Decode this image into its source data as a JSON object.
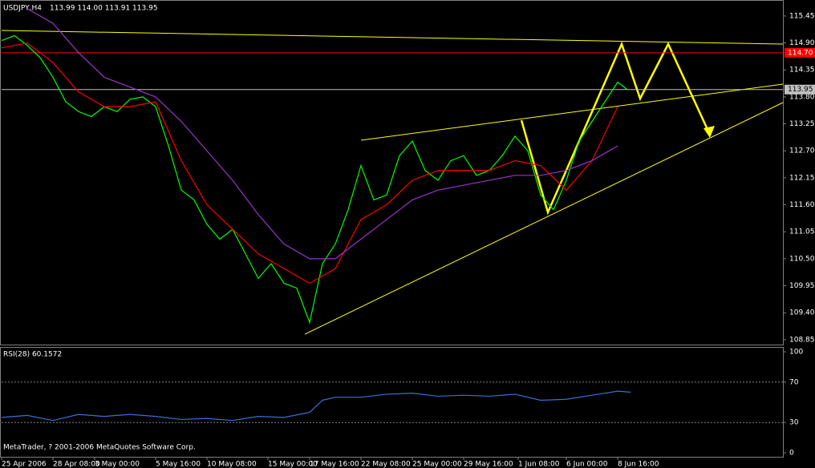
{
  "chart_data": [
    {
      "type": "line",
      "title": "USDJPY,H4",
      "subtitle": "113.99 114.00 113.91 113.95",
      "x": [
        0,
        4,
        8,
        12,
        16,
        20,
        24,
        28,
        32,
        36,
        40,
        44,
        48,
        52,
        56,
        60,
        64,
        68,
        72,
        76,
        80,
        84,
        88,
        92,
        96,
        100,
        104,
        108,
        112,
        116,
        120,
        124,
        128,
        132,
        136,
        140,
        144,
        148,
        152,
        156,
        160,
        164,
        168,
        172,
        176,
        180,
        184,
        188,
        192,
        195
      ],
      "series": [
        {
          "color": "#00ff00",
          "values": [
            114.95,
            115.05,
            114.85,
            114.6,
            114.2,
            113.7,
            113.5,
            113.4,
            113.6,
            113.5,
            113.75,
            113.8,
            113.6,
            112.8,
            111.9,
            111.7,
            111.2,
            110.9,
            111.1,
            110.6,
            110.1,
            110.4,
            110.0,
            109.9,
            109.2,
            110.4,
            110.8,
            111.5,
            112.4,
            111.7,
            111.8,
            112.6,
            112.9,
            112.3,
            112.1,
            112.5,
            112.6,
            112.2,
            112.3,
            112.6,
            113.0,
            112.7,
            111.8,
            111.5,
            112.1,
            112.9,
            113.3,
            113.7,
            114.1,
            113.95
          ]
        },
        {
          "color": "#ff0000",
          "x": [
            0,
            8,
            16,
            24,
            32,
            40,
            48,
            56,
            64,
            72,
            80,
            88,
            96,
            104,
            112,
            120,
            128,
            136,
            144,
            152,
            160,
            168,
            176,
            184,
            192
          ],
          "values": [
            114.8,
            114.9,
            114.5,
            113.9,
            113.6,
            113.6,
            113.7,
            112.5,
            111.6,
            111.1,
            110.6,
            110.3,
            110.0,
            110.3,
            111.3,
            111.6,
            112.1,
            112.3,
            112.3,
            112.3,
            112.5,
            112.4,
            111.9,
            112.5,
            113.6
          ]
        },
        {
          "color": "#9933cc",
          "x": [
            8,
            16,
            24,
            32,
            40,
            48,
            56,
            64,
            72,
            80,
            88,
            96,
            104,
            112,
            120,
            128,
            136,
            144,
            152,
            160,
            168,
            176,
            184,
            192
          ],
          "values": [
            115.6,
            115.3,
            114.7,
            114.2,
            114.0,
            113.8,
            113.3,
            112.7,
            112.1,
            111.4,
            110.8,
            110.5,
            110.5,
            110.9,
            111.3,
            111.7,
            111.9,
            112.0,
            112.1,
            112.2,
            112.2,
            112.3,
            112.5,
            112.8
          ]
        }
      ],
      "hlines": [
        {
          "value": 114.7,
          "label": "114.70",
          "color": "#ff0000"
        },
        {
          "value": 113.95,
          "color": "#c0c0c0"
        }
      ],
      "xlim": [
        0,
        243.5
      ],
      "ylim": [
        108.75,
        115.71
      ],
      "yticks": [
        115.45,
        {
          "value": 114.9,
          "label": "114.90"
        },
        114.35,
        {
          "value": 113.8,
          "label": "113.80"
        },
        113.25,
        {
          "value": 112.7,
          "label": "112.70"
        },
        112.15,
        {
          "value": 111.6,
          "label": "111.60"
        },
        111.05,
        {
          "value": 110.5,
          "label": "110.50"
        },
        109.95,
        {
          "value": 109.4,
          "label": "109.40"
        },
        108.85
      ],
      "xticks": [
        {
          "value": 0,
          "label": "25 Apr 2006"
        },
        {
          "value": 16,
          "label": "28 Apr 08:00"
        },
        {
          "value": 29,
          "label": "3 May 00:00"
        },
        {
          "value": 48,
          "label": "5 May 16:00"
        },
        {
          "value": 64,
          "label": "10 May 08:00"
        },
        {
          "value": 83,
          "label": "15 May 00:00"
        },
        {
          "value": 96,
          "label": "17 May 16:00"
        },
        {
          "value": 112,
          "label": "22 May 08:00"
        },
        {
          "value": 128,
          "label": "25 May 00:00"
        },
        {
          "value": 144,
          "label": "29 May 16:00"
        },
        {
          "value": 161,
          "label": "1 Jun 08:00"
        },
        {
          "value": 176,
          "label": "6 Jun 00:00"
        },
        {
          "value": 192,
          "label": "8 Jun 16:00"
        }
      ]
    },
    {
      "type": "line",
      "title": "RSI(28) 60.1572",
      "x": [
        0,
        8,
        16,
        24,
        32,
        40,
        48,
        56,
        64,
        72,
        80,
        88,
        96,
        100,
        104,
        112,
        120,
        128,
        136,
        144,
        152,
        160,
        168,
        176,
        184,
        192,
        196
      ],
      "series": [
        {
          "color": "#3a6fd8",
          "values": [
            35,
            37,
            32,
            38,
            36,
            38,
            36,
            33,
            34,
            32,
            36,
            35,
            40,
            52,
            55,
            55,
            58,
            59,
            56,
            57,
            56,
            58,
            52,
            53,
            57,
            61,
            60
          ]
        }
      ],
      "levels": [
        70,
        30
      ],
      "xlim": [
        0,
        243.5
      ],
      "ylim": [
        0,
        100
      ],
      "yticks": [
        100,
        70,
        30,
        0
      ]
    }
  ],
  "footer": "MetaTrader, ? 2001-2006 MetaQuotes Software Corp."
}
